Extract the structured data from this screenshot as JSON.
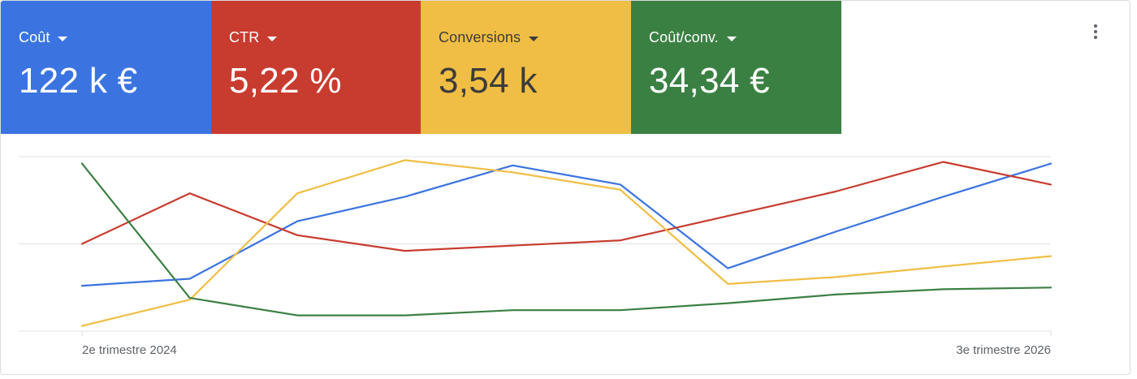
{
  "tiles": [
    {
      "label": "Coût",
      "value": "122 k €",
      "bg": "#3b74e0",
      "fg": "#ffffff"
    },
    {
      "label": "CTR",
      "value": "5,22 %",
      "bg": "#c83c2f",
      "fg": "#ffffff"
    },
    {
      "label": "Conversions",
      "value": "3,54 k",
      "bg": "#f0be44",
      "fg": "#3c3c3c"
    },
    {
      "label": "Coût/conv.",
      "value": "34,34 €",
      "bg": "#3b8043",
      "fg": "#ffffff"
    }
  ],
  "more_icon": "more-vert-icon",
  "chart_data": {
    "type": "line",
    "x_start_label": "2e trimestre 2024",
    "x_end_label": "3e trimestre 2026",
    "grid": true,
    "legend": "none",
    "ylim": [
      0,
      100
    ],
    "series": [
      {
        "color": "#3b74e0",
        "values": [
          26,
          30,
          63,
          77,
          95,
          84,
          36,
          57,
          77,
          96
        ]
      },
      {
        "color": "#c83c2f",
        "values": [
          50,
          79,
          55,
          46,
          49,
          52,
          66,
          80,
          97,
          84
        ]
      },
      {
        "color": "#f0be44",
        "values": [
          3,
          18,
          79,
          98,
          91,
          81,
          27,
          31,
          37,
          43
        ]
      },
      {
        "color": "#3b8043",
        "values": [
          96,
          19,
          9,
          9,
          12,
          12,
          16,
          21,
          24,
          25
        ]
      }
    ]
  }
}
